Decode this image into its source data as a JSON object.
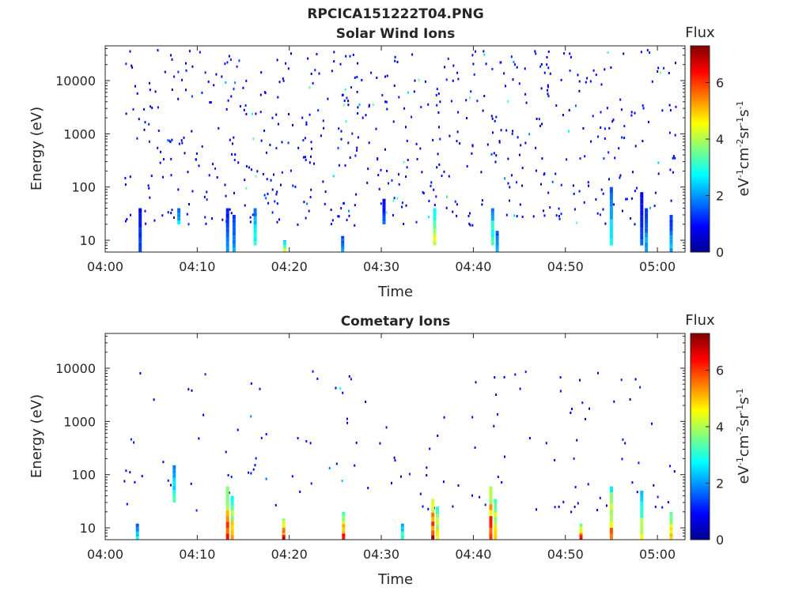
{
  "figure_title": "RPCICA151222T04.PNG",
  "chart_data": [
    {
      "type": "heatmap",
      "title": "Solar Wind Ions",
      "xlabel": "Time",
      "ylabel": "Energy (eV)",
      "yscale": "log",
      "ylim": [
        6,
        45000
      ],
      "x_range_minutes": [
        0,
        63
      ],
      "x_ticks": [
        "04:00",
        "04:10",
        "04:20",
        "04:30",
        "04:40",
        "04:50",
        "05:00"
      ],
      "y_ticks": [
        "10",
        "100",
        "1000",
        "10000"
      ],
      "colorbar": {
        "label": "eV-1cm-2sr-1s-1",
        "title": "Flux",
        "range": [
          0,
          7.3
        ],
        "ticks": [
          "0",
          "2",
          "4",
          "6"
        ]
      },
      "scattered_noise": {
        "count": 620,
        "x_range": [
          "04:02",
          "05:02"
        ],
        "energy_range": [
          20,
          40000
        ],
        "flux": 0.6
      },
      "bursts": [
        {
          "time": "04:03.8",
          "energy_range": [
            6,
            40
          ],
          "flux": 1.5
        },
        {
          "time": "04:08.0",
          "energy_range": [
            20,
            40
          ],
          "flux": 2.7
        },
        {
          "time": "04:13.3",
          "energy_range": [
            6,
            40
          ],
          "flux": 1.8
        },
        {
          "time": "04:14.0",
          "energy_range": [
            6,
            30
          ],
          "flux": 2.2
        },
        {
          "time": "04:16.3",
          "energy_range": [
            8,
            40
          ],
          "flux": 3.0
        },
        {
          "time": "04:19.5",
          "energy_range": [
            6,
            10
          ],
          "flux": 4.2
        },
        {
          "time": "04:25.8",
          "energy_range": [
            6,
            12
          ],
          "flux": 2.3
        },
        {
          "time": "04:30.3",
          "energy_range": [
            20,
            60
          ],
          "flux": 1.5
        },
        {
          "time": "04:35.8",
          "energy_range": [
            8,
            40
          ],
          "flux": 4.5
        },
        {
          "time": "04:42.1",
          "energy_range": [
            8,
            40
          ],
          "flux": 3.6
        },
        {
          "time": "04:42.6",
          "energy_range": [
            6,
            15
          ],
          "flux": 2.5
        },
        {
          "time": "04:55.0",
          "energy_range": [
            8,
            100
          ],
          "flux": 3.0
        },
        {
          "time": "04:58.3",
          "energy_range": [
            8,
            80
          ],
          "flux": 1.5
        },
        {
          "time": "04:58.8",
          "energy_range": [
            6,
            40
          ],
          "flux": 2.3
        },
        {
          "time": "05:01.5",
          "energy_range": [
            6,
            30
          ],
          "flux": 2.2
        }
      ]
    },
    {
      "type": "heatmap",
      "title": "Cometary Ions",
      "xlabel": "Time",
      "ylabel": "Energy (eV)",
      "yscale": "log",
      "ylim": [
        6,
        45000
      ],
      "x_range_minutes": [
        0,
        63
      ],
      "x_ticks": [
        "04:00",
        "04:10",
        "04:20",
        "04:30",
        "04:40",
        "04:50",
        "05:00"
      ],
      "y_ticks": [
        "10",
        "100",
        "1000",
        "10000"
      ],
      "colorbar": {
        "label": "eV-1cm-2sr-1s-1",
        "title": "Flux",
        "range": [
          0,
          7.3
        ],
        "ticks": [
          "0",
          "2",
          "4",
          "6"
        ]
      },
      "scattered_noise": {
        "count": 140,
        "x_range": [
          "04:02",
          "05:02"
        ],
        "energy_range": [
          20,
          10000
        ],
        "flux": 0.6
      },
      "bursts": [
        {
          "time": "04:03.5",
          "energy_range": [
            6,
            12
          ],
          "flux": 2.8
        },
        {
          "time": "04:07.5",
          "energy_range": [
            30,
            150
          ],
          "flux": 3.2
        },
        {
          "time": "04:13.3",
          "energy_range": [
            6,
            60
          ],
          "flux": 6.0
        },
        {
          "time": "04:13.8",
          "energy_range": [
            6,
            40
          ],
          "flux": 5.3
        },
        {
          "time": "04:19.4",
          "energy_range": [
            6,
            15
          ],
          "flux": 6.4
        },
        {
          "time": "04:25.9",
          "energy_range": [
            6,
            20
          ],
          "flux": 6.2
        },
        {
          "time": "04:32.3",
          "energy_range": [
            6,
            12
          ],
          "flux": 3.5
        },
        {
          "time": "04:35.6",
          "energy_range": [
            6,
            35
          ],
          "flux": 6.8
        },
        {
          "time": "04:36.1",
          "energy_range": [
            6,
            25
          ],
          "flux": 5.0
        },
        {
          "time": "04:41.9",
          "energy_range": [
            6,
            60
          ],
          "flux": 6.6
        },
        {
          "time": "04:42.4",
          "energy_range": [
            6,
            35
          ],
          "flux": 5.6
        },
        {
          "time": "04:51.7",
          "energy_range": [
            6,
            12
          ],
          "flux": 6.0
        },
        {
          "time": "04:55.0",
          "energy_range": [
            6,
            60
          ],
          "flux": 5.5
        },
        {
          "time": "04:58.3",
          "energy_range": [
            6,
            50
          ],
          "flux": 4.5
        },
        {
          "time": "05:01.5",
          "energy_range": [
            6,
            20
          ],
          "flux": 5.6
        }
      ]
    }
  ]
}
